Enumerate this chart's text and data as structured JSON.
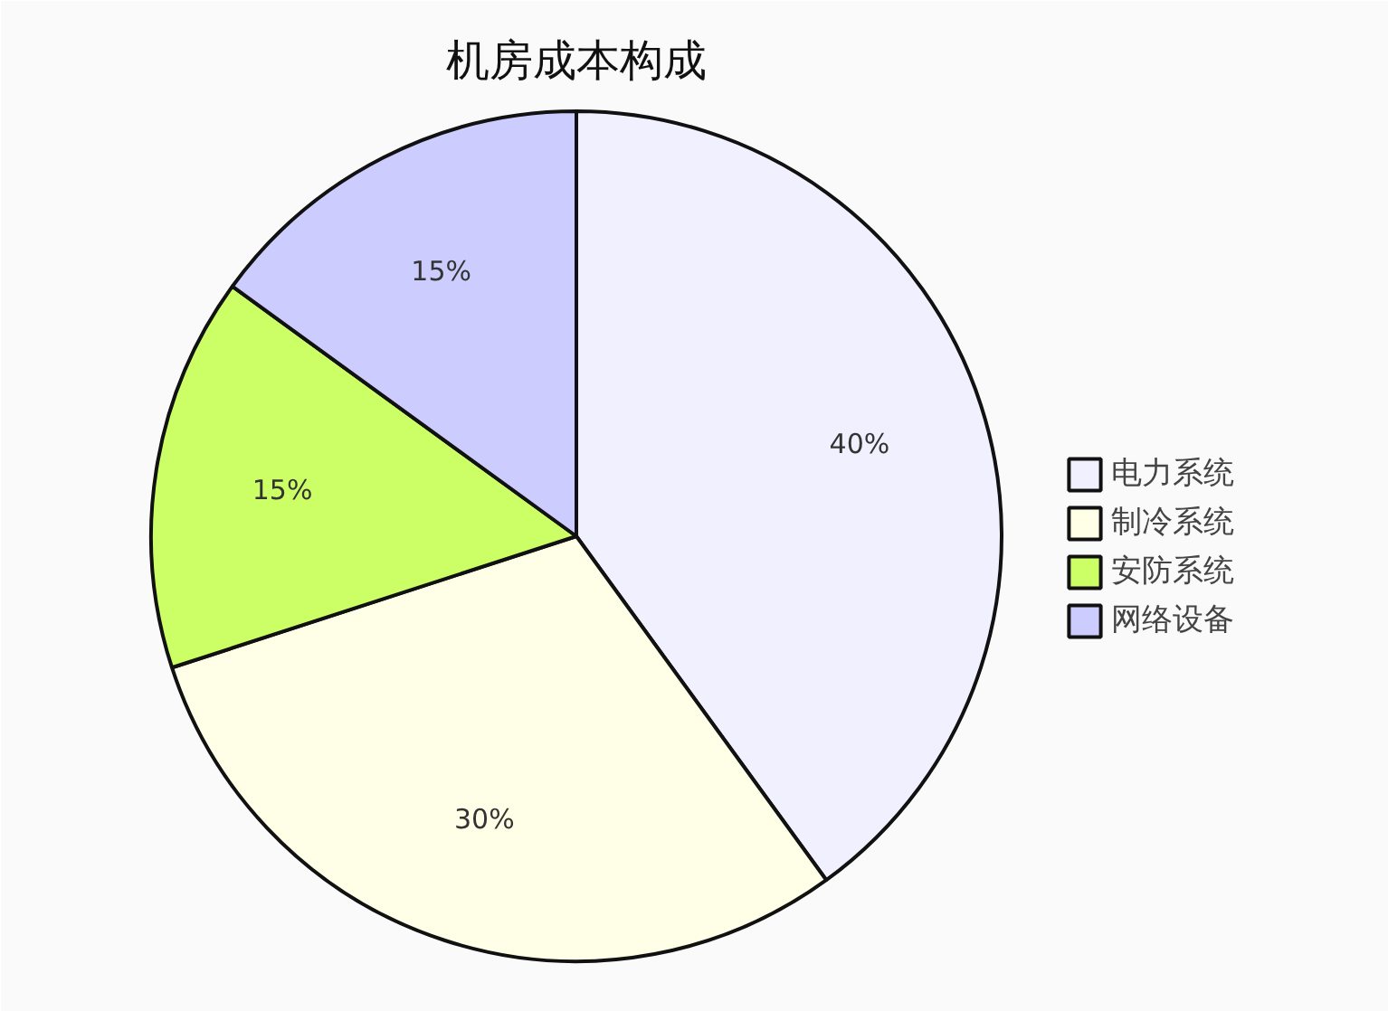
{
  "chart_data": {
    "type": "pie",
    "title": "机房成本构成",
    "categories": [
      "电力系统",
      "制冷系统",
      "安防系统",
      "网络设备"
    ],
    "values": [
      40,
      30,
      15,
      15
    ],
    "colors": [
      "#f0f0ff",
      "#ffffe8",
      "#ccff66",
      "#ccccff"
    ],
    "value_labels": [
      "40%",
      "30%",
      "15%",
      "15%"
    ],
    "legend": "right"
  }
}
